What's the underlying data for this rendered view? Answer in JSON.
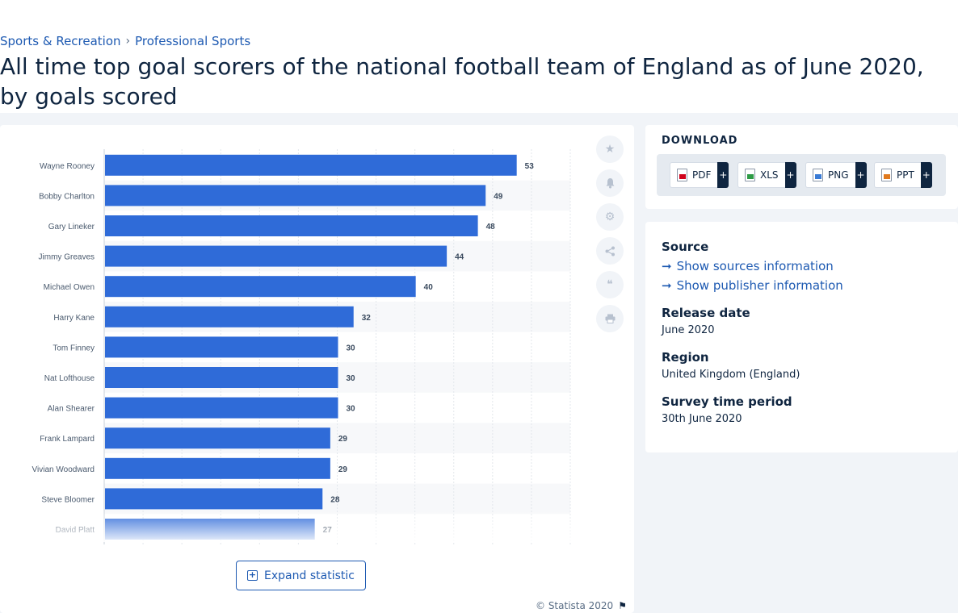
{
  "breadcrumb": {
    "items": [
      "Sports & Recreation",
      "Professional Sports"
    ],
    "separator": "›"
  },
  "title": "All time top goal scorers of the national football team of England as of June 2020, by goals scored",
  "toolbar": {
    "expand_label": "Expand statistic",
    "copyright": "© Statista 2020"
  },
  "download": {
    "heading": "DOWNLOAD",
    "buttons": [
      {
        "label": "PDF",
        "icon": "pdf-file-icon",
        "color": "#d0021b"
      },
      {
        "label": "XLS",
        "icon": "xls-file-icon",
        "color": "#2e9b46"
      },
      {
        "label": "PNG",
        "icon": "png-file-icon",
        "color": "#3a7bd5"
      },
      {
        "label": "PPT",
        "icon": "ppt-file-icon",
        "color": "#e07a1f"
      }
    ],
    "plus": "+"
  },
  "info": {
    "source_label": "Source",
    "source_link": "Show sources information",
    "publisher_link": "Show publisher information",
    "release_label": "Release date",
    "release_value": "June 2020",
    "region_label": "Region",
    "region_value": "United Kingdom (England)",
    "survey_label": "Survey time period",
    "survey_value": "30th June 2020"
  },
  "colors": {
    "bar": "#2f6bd8",
    "accent": "#1e5ab2",
    "text": "#0f2540"
  },
  "chart_data": {
    "type": "bar",
    "orientation": "horizontal",
    "categories": [
      "Wayne Rooney",
      "Bobby Charlton",
      "Gary Lineker",
      "Jimmy Greaves",
      "Michael Owen",
      "Harry Kane",
      "Tom Finney",
      "Nat Lofthouse",
      "Alan Shearer",
      "Frank Lampard",
      "Vivian Woodward",
      "Steve Bloomer",
      "David Platt"
    ],
    "values": [
      53,
      49,
      48,
      44,
      40,
      32,
      30,
      30,
      30,
      29,
      29,
      28,
      27
    ],
    "xlim": [
      0,
      60
    ],
    "grid": true,
    "title": "",
    "xlabel": "",
    "ylabel": ""
  }
}
